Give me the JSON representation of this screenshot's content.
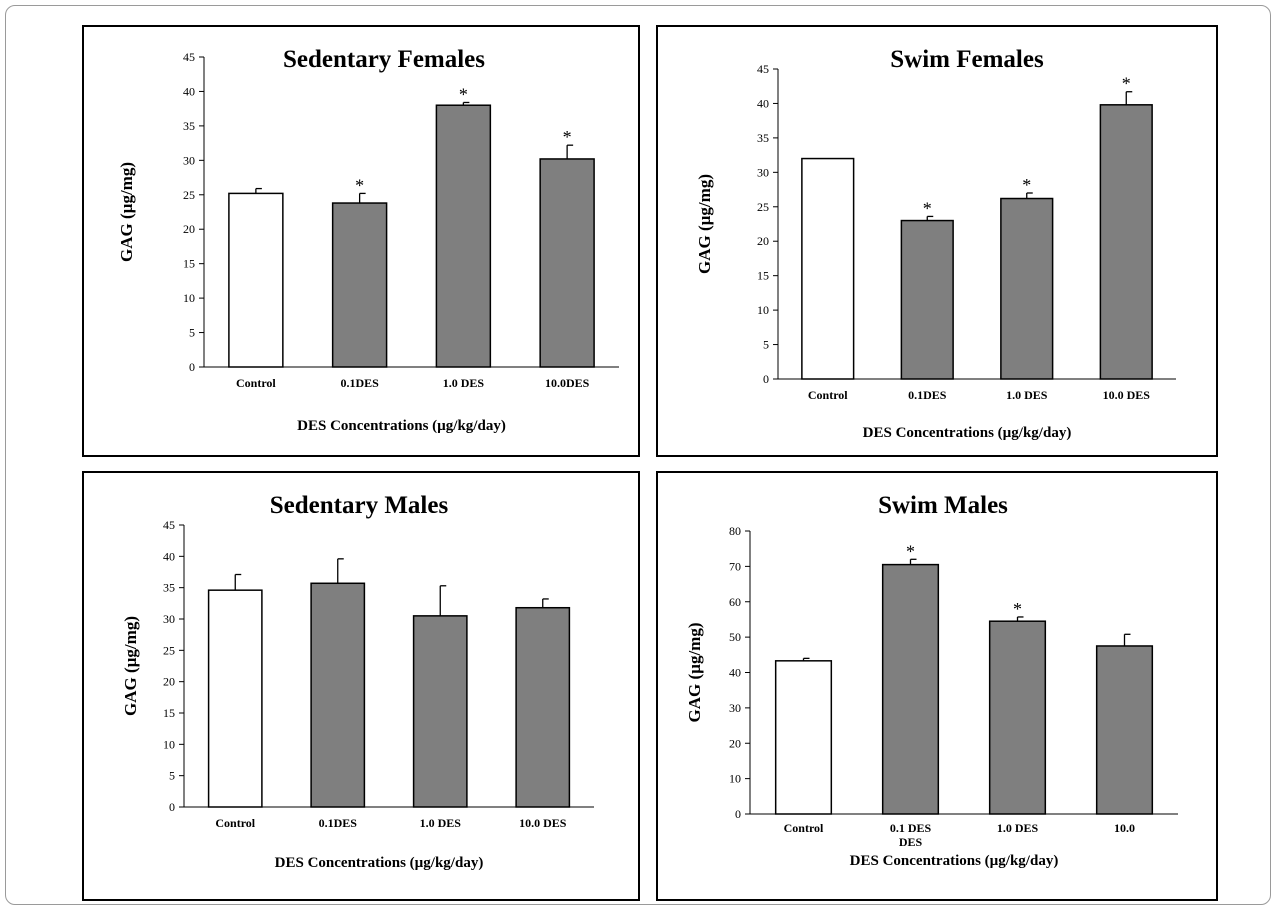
{
  "colors": {
    "bar_gray": "#7f7f7f",
    "bar_white": "#ffffff",
    "stroke": "#000000"
  },
  "chart_data": [
    {
      "type": "bar",
      "title": "Sedentary Females",
      "xlabel": "DES Concentrations (µg/kg/day)",
      "ylabel": "GAG (µg/mg)",
      "ylim": [
        0,
        45
      ],
      "ytick_step": 5,
      "categories": [
        "Control",
        "0.1DES",
        "1.0 DES",
        "10.0DES"
      ],
      "values": [
        25.2,
        23.8,
        38.0,
        30.2
      ],
      "errors": [
        0.7,
        1.4,
        0.4,
        2.0
      ],
      "significant": [
        false,
        true,
        true,
        true
      ],
      "annotation": "*",
      "bar_fill": [
        "white",
        "gray",
        "gray",
        "gray"
      ]
    },
    {
      "type": "bar",
      "title": "Swim Females",
      "xlabel": "DES Concentrations (µg/kg/day)",
      "ylabel": "GAG (µg/mg)",
      "ylim": [
        0,
        45
      ],
      "ytick_step": 5,
      "categories": [
        "Control",
        "0.1DES",
        "1.0 DES",
        "10.0 DES"
      ],
      "values": [
        32.0,
        23.0,
        26.2,
        39.8
      ],
      "errors": [
        0.0,
        0.6,
        0.8,
        1.9
      ],
      "significant": [
        false,
        true,
        true,
        true
      ],
      "annotation": "*",
      "bar_fill": [
        "white",
        "gray",
        "gray",
        "gray"
      ]
    },
    {
      "type": "bar",
      "title": "Sedentary Males",
      "xlabel": "DES Concentrations (µg/kg/day)",
      "ylabel": "GAG (µg/mg)",
      "ylim": [
        0,
        45
      ],
      "ytick_step": 5,
      "categories": [
        "Control",
        "0.1DES",
        "1.0 DES",
        "10.0 DES"
      ],
      "values": [
        34.6,
        35.7,
        30.5,
        31.8
      ],
      "errors": [
        2.5,
        3.9,
        4.8,
        1.4
      ],
      "significant": [
        false,
        false,
        false,
        false
      ],
      "annotation": "*",
      "bar_fill": [
        "white",
        "gray",
        "gray",
        "gray"
      ]
    },
    {
      "type": "bar",
      "title": "Swim Males",
      "xlabel": "DES Concentrations (µg/kg/day)",
      "ylabel": "GAG (µg/mg)",
      "ylim": [
        0,
        80
      ],
      "ytick_step": 10,
      "categories": [
        "Control",
        "0.1 DES",
        "1.0 DES",
        "10.0"
      ],
      "category_second_line": [
        "",
        "DES",
        "",
        ""
      ],
      "values": [
        43.3,
        70.5,
        54.5,
        47.5
      ],
      "errors": [
        0.7,
        1.5,
        1.2,
        3.3
      ],
      "significant": [
        false,
        true,
        true,
        false
      ],
      "annotation": "*",
      "bar_fill": [
        "white",
        "gray",
        "gray",
        "gray"
      ]
    }
  ]
}
